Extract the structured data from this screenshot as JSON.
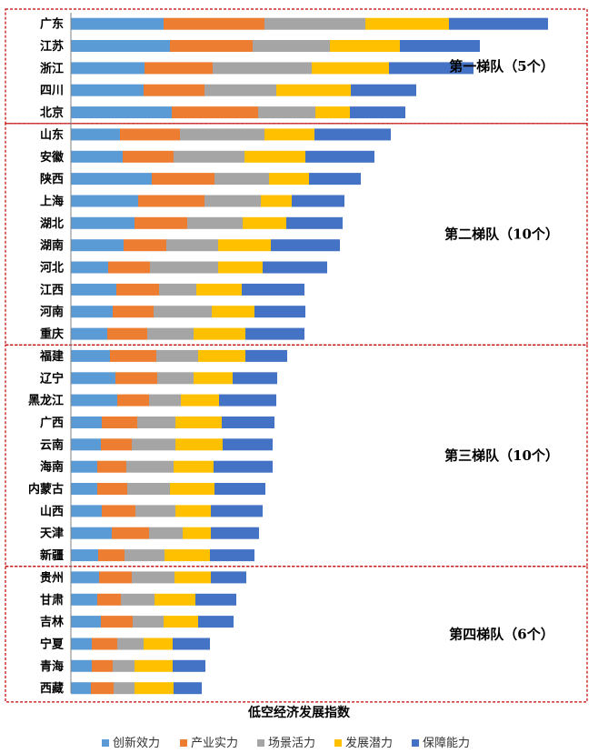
{
  "chart_data": {
    "type": "bar",
    "orientation": "horizontal",
    "stacked": true,
    "xlabel": "低空经济发展指数",
    "legend_position": "bottom",
    "grid": false,
    "categories": [
      "广东",
      "江苏",
      "浙江",
      "四川",
      "北京",
      "山东",
      "安徽",
      "陕西",
      "上海",
      "湖北",
      "湖南",
      "河北",
      "江西",
      "河南",
      "重庆",
      "福建",
      "辽宁",
      "黑龙江",
      "广西",
      "云南",
      "海南",
      "内蒙古",
      "山西",
      "天津",
      "新疆",
      "贵州",
      "甘肃",
      "吉林",
      "宁夏",
      "青海",
      "西藏"
    ],
    "series": [
      {
        "name": "创新效力",
        "color": "#5B9BD5",
        "values": [
          102,
          109,
          81,
          80,
          111,
          54,
          57,
          89,
          74,
          70,
          58,
          41,
          50,
          46,
          40,
          43,
          49,
          51,
          34,
          33,
          29,
          29,
          34,
          45,
          30,
          31,
          29,
          33,
          23,
          23,
          22
        ]
      },
      {
        "name": "产业实力",
        "color": "#ED7D31",
        "values": [
          111,
          91,
          75,
          67,
          95,
          66,
          56,
          69,
          73,
          58,
          47,
          46,
          47,
          45,
          44,
          51,
          46,
          35,
          39,
          34,
          32,
          33,
          37,
          41,
          29,
          36,
          26,
          35,
          28,
          23,
          25
        ]
      },
      {
        "name": "场景活力",
        "color": "#A5A5A5",
        "values": [
          111,
          85,
          109,
          79,
          63,
          93,
          78,
          60,
          62,
          61,
          57,
          75,
          41,
          64,
          51,
          46,
          40,
          35,
          42,
          48,
          52,
          47,
          44,
          37,
          44,
          47,
          37,
          34,
          29,
          24,
          23
        ]
      },
      {
        "name": "发展潜力",
        "color": "#FFC000",
        "values": [
          92,
          77,
          85,
          82,
          38,
          55,
          67,
          44,
          34,
          48,
          58,
          49,
          50,
          47,
          57,
          52,
          43,
          42,
          51,
          52,
          44,
          49,
          39,
          31,
          50,
          40,
          45,
          38,
          32,
          42,
          43
        ]
      },
      {
        "name": "保障能力",
        "color": "#4472C4",
        "values": [
          109,
          88,
          93,
          72,
          61,
          84,
          76,
          57,
          58,
          62,
          76,
          71,
          69,
          56,
          65,
          46,
          49,
          63,
          58,
          55,
          65,
          56,
          57,
          53,
          49,
          39,
          45,
          39,
          41,
          36,
          31
        ]
      }
    ],
    "tiers": [
      {
        "label": "第一梯队（5个）",
        "start": 0,
        "count": 5
      },
      {
        "label": "第二梯队（10个）",
        "start": 5,
        "count": 10
      },
      {
        "label": "第三梯队（10个）",
        "start": 15,
        "count": 10
      },
      {
        "label": "第四梯队（6个）",
        "start": 25,
        "count": 6
      }
    ]
  }
}
